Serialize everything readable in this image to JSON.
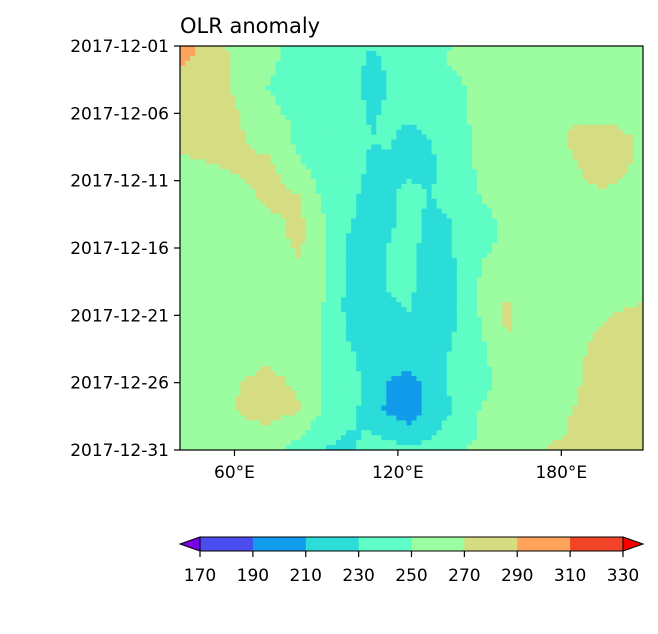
{
  "chart_data": {
    "type": "heatmap",
    "title": "OLR anomaly",
    "x_axis": {
      "range": [
        40,
        210
      ],
      "ticks": [
        {
          "value": 60,
          "label": "60°E"
        },
        {
          "value": 120,
          "label": "120°E"
        },
        {
          "value": 180,
          "label": "180°E"
        }
      ]
    },
    "y_axis": {
      "range": [
        "2017-12-01",
        "2017-12-31"
      ],
      "ticks": [
        "2017-12-01",
        "2017-12-06",
        "2017-12-11",
        "2017-12-16",
        "2017-12-21",
        "2017-12-26",
        "2017-12-31"
      ]
    },
    "colorbar": {
      "placement": "bottom",
      "extend": "both",
      "levels": [
        170,
        190,
        210,
        230,
        250,
        270,
        290,
        310,
        330
      ],
      "labels": [
        "170",
        "190",
        "210",
        "230",
        "250",
        "270",
        "290",
        "310",
        "330"
      ],
      "colors": [
        "#4b4cf0",
        "#129bea",
        "#2bddd8",
        "#5ffdc6",
        "#9bfca0",
        "#d6dc82",
        "#fda35c",
        "#f04428"
      ],
      "under_color": "#7a00e8",
      "over_color": "#f80000"
    },
    "field": {
      "lon": [
        40,
        56,
        62,
        72,
        84,
        92,
        102,
        110,
        116,
        124,
        132,
        140,
        150,
        160,
        172,
        184,
        196,
        210
      ],
      "dates": [
        "2017-12-01",
        "2017-12-02",
        "2017-12-04",
        "2017-12-06",
        "2017-12-08",
        "2017-12-10",
        "2017-12-12",
        "2017-12-14",
        "2017-12-16",
        "2017-12-18",
        "2017-12-20",
        "2017-12-22",
        "2017-12-24",
        "2017-12-26",
        "2017-12-28",
        "2017-12-30",
        "2017-12-31"
      ],
      "values": [
        [
          300,
          272,
          262,
          252,
          248,
          246,
          244,
          230,
          238,
          246,
          244,
          250,
          258,
          260,
          262,
          262,
          265,
          268
        ],
        [
          295,
          275,
          264,
          252,
          246,
          244,
          240,
          226,
          232,
          240,
          246,
          252,
          258,
          262,
          265,
          264,
          266,
          268
        ],
        [
          282,
          272,
          266,
          250,
          246,
          242,
          238,
          224,
          230,
          236,
          238,
          246,
          254,
          258,
          264,
          266,
          266,
          268
        ],
        [
          276,
          275,
          270,
          252,
          248,
          242,
          240,
          228,
          232,
          232,
          234,
          246,
          254,
          258,
          262,
          268,
          266,
          266
        ],
        [
          272,
          274,
          272,
          262,
          246,
          242,
          244,
          230,
          232,
          226,
          230,
          242,
          252,
          260,
          262,
          272,
          276,
          268
        ],
        [
          268,
          270,
          274,
          276,
          252,
          244,
          242,
          226,
          228,
          226,
          226,
          242,
          252,
          258,
          262,
          268,
          278,
          266
        ],
        [
          264,
          260,
          262,
          276,
          270,
          246,
          236,
          222,
          226,
          234,
          230,
          236,
          250,
          256,
          262,
          266,
          268,
          262
        ],
        [
          262,
          258,
          258,
          266,
          274,
          254,
          232,
          220,
          226,
          236,
          226,
          230,
          246,
          252,
          256,
          264,
          264,
          262
        ],
        [
          262,
          256,
          258,
          264,
          272,
          258,
          226,
          218,
          230,
          240,
          218,
          230,
          248,
          252,
          254,
          258,
          262,
          264
        ],
        [
          264,
          254,
          256,
          264,
          266,
          256,
          226,
          218,
          232,
          236,
          218,
          226,
          250,
          260,
          254,
          256,
          262,
          264
        ],
        [
          264,
          256,
          256,
          262,
          260,
          252,
          224,
          216,
          228,
          232,
          220,
          228,
          252,
          272,
          258,
          262,
          266,
          270
        ],
        [
          262,
          260,
          258,
          262,
          258,
          250,
          226,
          218,
          226,
          226,
          216,
          228,
          248,
          272,
          262,
          264,
          272,
          278
        ],
        [
          260,
          258,
          262,
          266,
          262,
          248,
          234,
          220,
          222,
          222,
          220,
          232,
          246,
          258,
          262,
          266,
          276,
          280
        ],
        [
          262,
          262,
          270,
          276,
          266,
          248,
          236,
          226,
          210,
          200,
          220,
          234,
          248,
          252,
          262,
          268,
          276,
          278
        ],
        [
          262,
          262,
          272,
          280,
          272,
          250,
          236,
          222,
          206,
          196,
          218,
          230,
          250,
          254,
          262,
          270,
          274,
          276
        ],
        [
          266,
          264,
          262,
          262,
          250,
          236,
          228,
          232,
          228,
          222,
          228,
          240,
          252,
          254,
          264,
          272,
          278,
          280
        ],
        [
          268,
          266,
          262,
          256,
          244,
          230,
          226,
          236,
          238,
          232,
          236,
          246,
          254,
          256,
          270,
          276,
          280,
          282
        ]
      ]
    }
  }
}
